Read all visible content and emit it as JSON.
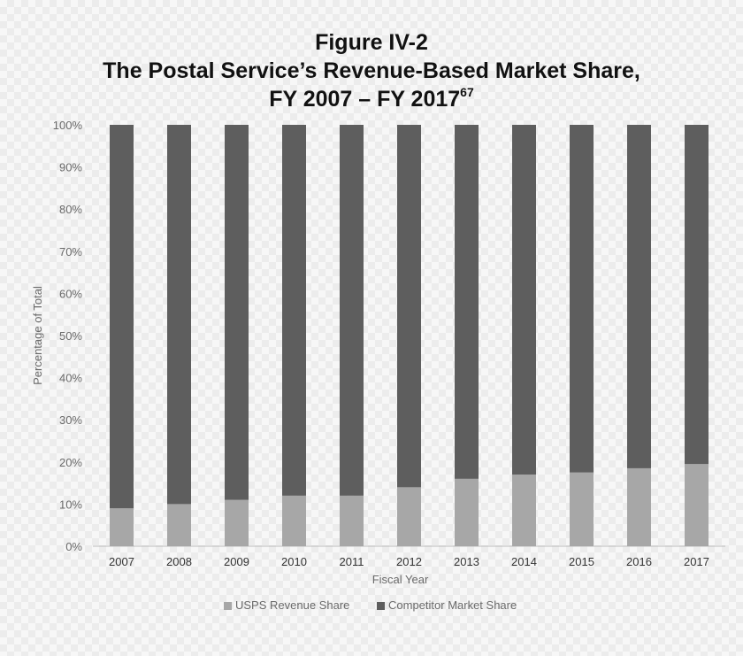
{
  "title": {
    "line1": "Figure IV-2",
    "line2": "The Postal Service’s Revenue-Based Market Share,",
    "line3": "FY 2007 – FY 2017",
    "footnote_marker": "67"
  },
  "colors": {
    "usps": "#a7a7a7",
    "competitor": "#5e5e5e",
    "axis_text": "#6a6a6a",
    "grid": "#cfcfcf"
  },
  "chart_data": {
    "type": "bar",
    "stacked": true,
    "categories": [
      "2007",
      "2008",
      "2009",
      "2010",
      "2011",
      "2012",
      "2013",
      "2014",
      "2015",
      "2016",
      "2017"
    ],
    "series": [
      {
        "name": "USPS Revenue Share",
        "values": [
          9,
          10,
          11,
          12,
          12,
          14,
          16,
          17,
          17.5,
          18.5,
          19.5
        ]
      },
      {
        "name": "Competitor Market Share",
        "values": [
          91,
          90,
          89,
          88,
          88,
          86,
          84,
          83,
          82.5,
          81.5,
          80.5
        ]
      }
    ],
    "xlabel": "Fiscal Year",
    "ylabel": "Percentage of Total",
    "ylim": [
      0,
      100
    ],
    "yticks": [
      "0%",
      "10%",
      "20%",
      "30%",
      "40%",
      "50%",
      "60%",
      "70%",
      "80%",
      "90%",
      "100%"
    ],
    "legend_position": "bottom",
    "grid": false
  }
}
